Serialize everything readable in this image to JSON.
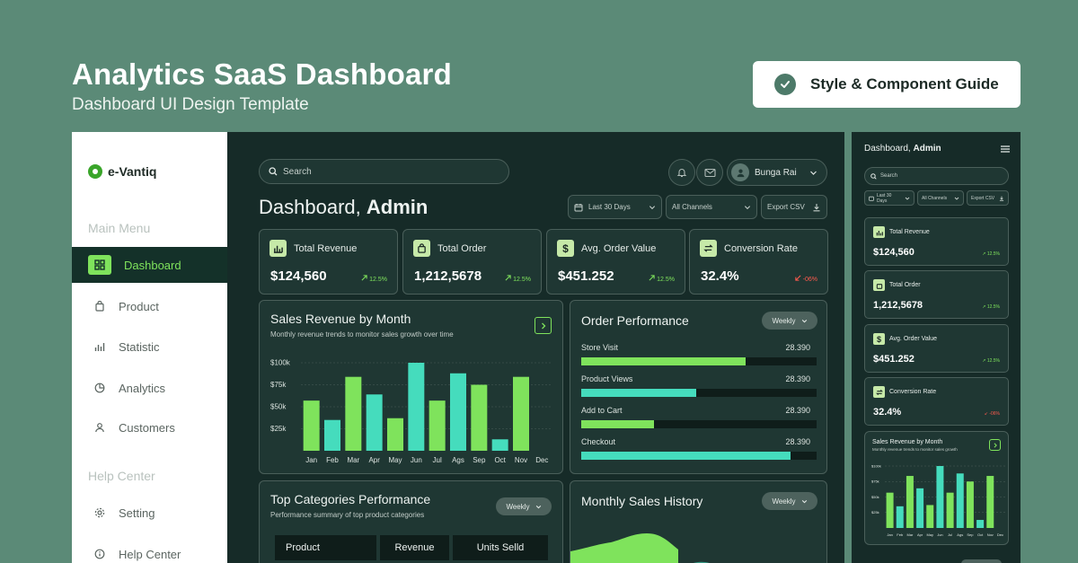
{
  "hero": {
    "title": "Analytics SaaS Dashboard",
    "subtitle": "Dashboard UI Design Template",
    "badge": "Style & Component Guide"
  },
  "sidebar": {
    "brand": "e-Vantiq",
    "main_menu_heading": "Main Menu",
    "items": [
      {
        "label": "Dashboard",
        "icon": "grid-icon",
        "active": true
      },
      {
        "label": "Product",
        "icon": "bag-icon",
        "active": false
      },
      {
        "label": "Statistic",
        "icon": "stats-icon",
        "active": false
      },
      {
        "label": "Analytics",
        "icon": "pie-icon",
        "active": false
      },
      {
        "label": "Customers",
        "icon": "user-icon",
        "active": false
      }
    ],
    "help_heading": "Help Center",
    "help_items": [
      {
        "label": "Setting",
        "icon": "gear-icon"
      },
      {
        "label": "Help Center",
        "icon": "info-icon"
      }
    ]
  },
  "header": {
    "search_placeholder": "Search",
    "user_name": "Bunga Rai",
    "title_prefix": "Dashboard,",
    "title_name": "Admin",
    "filter_period": "Last 30 Days",
    "filter_channel": "All Channels",
    "export_label": "Export CSV"
  },
  "kpis": [
    {
      "label": "Total Revenue",
      "value": "$124,560",
      "delta": "12.5%",
      "positive": true,
      "icon": "chart-icon"
    },
    {
      "label": "Total Order",
      "value": "1,212,5678",
      "delta": "12.5%",
      "positive": true,
      "icon": "bag-icon"
    },
    {
      "label": "Avg. Order Value",
      "value": "$451.252",
      "delta": "12.5%",
      "positive": true,
      "icon": "dollar-icon"
    },
    {
      "label": "Conversion Rate",
      "value": "32.4%",
      "delta": "-06%",
      "positive": false,
      "icon": "swap-icon"
    }
  ],
  "sales_card": {
    "title": "Sales Revenue by Month",
    "subtitle": "Monthly revenue trends to monitor sales growth over time"
  },
  "order_card": {
    "title": "Order Performance",
    "period": "Weekly",
    "rows": [
      {
        "label": "Store Visit",
        "value": "28.390",
        "fill": 0.7,
        "color": "#7fe35c"
      },
      {
        "label": "Product Views",
        "value": "28.390",
        "fill": 0.49,
        "color": "#45dcbd"
      },
      {
        "label": "Add to Cart",
        "value": "28.390",
        "fill": 0.31,
        "color": "#7fe35c"
      },
      {
        "label": "Checkout",
        "value": "28.390",
        "fill": 0.89,
        "color": "#45dcbd"
      }
    ]
  },
  "categories_card": {
    "title": "Top Categories Performance",
    "subtitle": "Performance summary of top product categories",
    "period": "Weekly",
    "columns": [
      "Product",
      "Revenue",
      "Units Selld"
    ]
  },
  "history_card": {
    "title": "Monthly Sales History",
    "period": "Weekly"
  },
  "mobile": {
    "title_prefix": "Dashboard,",
    "title_name": "Admin",
    "search_placeholder": "Search",
    "filter_period": "Last 30 Days",
    "filter_channel": "All Channels",
    "export_label": "Export CSV",
    "chart_title": "Sales Revenue by Month",
    "chart_subtitle": "Monthly revenue trends to monitor sales growth"
  },
  "colors": {
    "green": "#7fe35c",
    "teal": "#45dcbd",
    "negative": "#ff5a4e"
  },
  "chart_data": {
    "type": "bar",
    "categories": [
      "Jan",
      "Feb",
      "Mar",
      "Apr",
      "May",
      "Jun",
      "Jul",
      "Ags",
      "Sep",
      "Oct",
      "Nov",
      "Dec"
    ],
    "values": [
      57,
      35,
      84,
      64,
      37,
      100,
      57,
      88,
      75,
      13,
      84,
      0
    ],
    "mobile_categories": [
      "Jan",
      "Feb",
      "Mar",
      "Apr",
      "May",
      "Jun",
      "Jul",
      "Ags",
      "Sep",
      "Oct",
      "Nov",
      "Dec"
    ],
    "bar_colors": [
      "#7fe35c",
      "#45dcbd",
      "#7fe35c",
      "#45dcbd",
      "#7fe35c",
      "#45dcbd",
      "#7fe35c",
      "#45dcbd",
      "#7fe35c",
      "#45dcbd",
      "#7fe35c",
      "#45dcbd"
    ],
    "yticks": [
      "$100k",
      "$75k",
      "$50k",
      "$25k"
    ],
    "ylim": [
      0,
      100
    ],
    "title": "Sales Revenue by Month",
    "xlabel": "",
    "ylabel": ""
  }
}
